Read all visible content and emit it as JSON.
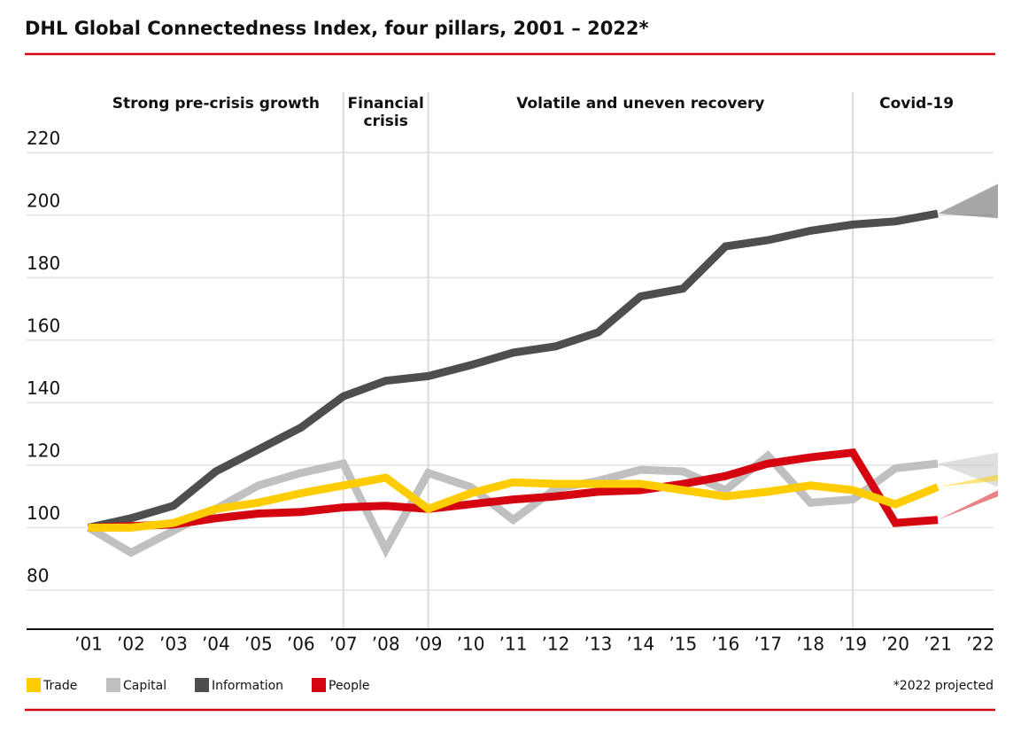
{
  "chart_data": {
    "type": "line",
    "title": "DHL Global Connectedness Index, four pillars, 2001 – 2022*",
    "footnote": "*2022 projected",
    "categories": [
      "’01",
      "’02",
      "’03",
      "’04",
      "’05",
      "’06",
      "’07",
      "’08",
      "’09",
      "’10",
      "’11",
      "’12",
      "’13",
      "’14",
      "’15",
      "’16",
      "’17",
      "’18",
      "’19",
      "’20",
      "’21",
      "’22"
    ],
    "ylim": [
      67.5,
      230
    ],
    "yticks": [
      80,
      100,
      120,
      140,
      160,
      180,
      200,
      220
    ],
    "grid": true,
    "legend": "bottom-left",
    "phases": [
      {
        "label": [
          "Strong pre-crisis growth"
        ],
        "from": "’01",
        "to": "’07"
      },
      {
        "label": [
          "Financial",
          "crisis"
        ],
        "from": "’07",
        "to": "’09"
      },
      {
        "label": [
          "Volatile and uneven recovery"
        ],
        "from": "’09",
        "to": "’19"
      },
      {
        "label": [
          "Covid-19"
        ],
        "from": "’19",
        "to": "’22"
      }
    ],
    "series": [
      {
        "name": "Trade",
        "color": "#ffcc00",
        "values": [
          100,
          100,
          101.5,
          106,
          108,
          111,
          113.5,
          116,
          106,
          111,
          114.5,
          114,
          114,
          114,
          112,
          110,
          111.5,
          113.5,
          112,
          107.5,
          113,
          null
        ],
        "projection": [
          115,
          117
        ]
      },
      {
        "name": "Capital",
        "color": "#c0c0c0",
        "values": [
          100,
          92,
          99,
          106,
          113.5,
          117.5,
          120.5,
          93,
          117.5,
          113,
          102.5,
          112.5,
          115,
          118.5,
          118,
          112,
          123,
          108,
          109,
          119,
          120.5,
          null
        ],
        "projection": [
          113,
          124
        ]
      },
      {
        "name": "Information",
        "color": "#4d4f4f",
        "values": [
          100,
          103,
          107,
          118,
          125,
          132,
          142,
          147,
          148.5,
          152,
          156,
          158,
          162.5,
          174,
          176.5,
          190,
          192,
          195,
          197,
          198,
          200.5,
          null
        ],
        "projection": [
          199,
          210
        ]
      },
      {
        "name": "People",
        "color": "#d40511",
        "values": [
          100,
          100.5,
          101,
          103,
          104.5,
          105,
          106.5,
          107,
          106,
          107.5,
          109,
          110,
          111.5,
          112,
          114,
          116.5,
          120.5,
          122.5,
          124,
          101.5,
          102.5,
          null
        ],
        "projection": [
          110,
          112
        ]
      }
    ]
  }
}
